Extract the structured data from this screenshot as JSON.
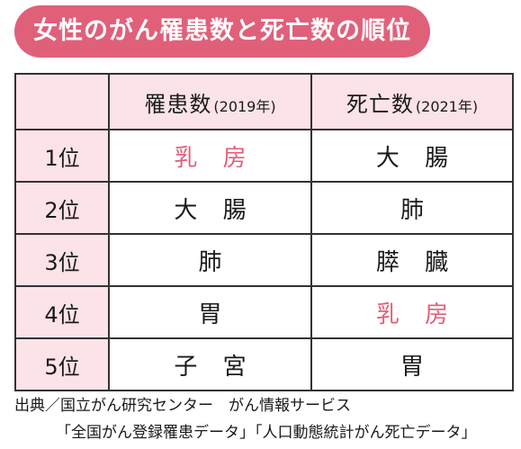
{
  "title": "女性のがん罹患数と死亡数の順位",
  "accent_color": "#e0607a",
  "header_fill_color": "#fbe3e8",
  "table": {
    "header": {
      "incidence_label": "罹患数",
      "incidence_year": "(2019年)",
      "mortality_label": "死亡数",
      "mortality_year": "(2021年)"
    },
    "rows": [
      {
        "rank": "1位",
        "incidence": "乳 房",
        "mortality": "大 腸"
      },
      {
        "rank": "2位",
        "incidence": "大 腸",
        "mortality": "肺"
      },
      {
        "rank": "3位",
        "incidence": "肺",
        "mortality": "膵 臓"
      },
      {
        "rank": "4位",
        "incidence": "胃",
        "mortality": "乳 房"
      },
      {
        "rank": "5位",
        "incidence": "子 宮",
        "mortality": "胃"
      }
    ]
  },
  "source": {
    "line1": "出典／国立がん研究センター　がん情報サービス",
    "line2": "「全国がん登録罹患データ」「人口動態統計がん死亡データ」"
  }
}
